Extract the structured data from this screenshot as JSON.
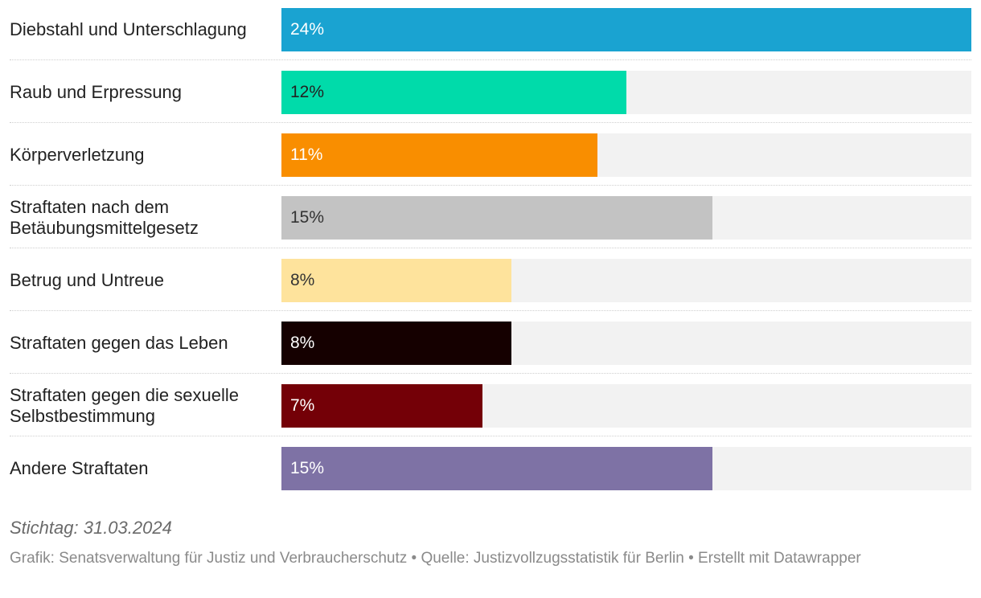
{
  "chart_data": {
    "type": "bar",
    "orientation": "horizontal",
    "categories": [
      "Diebstahl und Unterschlagung",
      "Raub und Erpressung",
      "Körperverletzung",
      "Straftaten nach dem Betäubungsmittelgesetz",
      "Betrug und Untreue",
      "Straftaten gegen das Leben",
      "Straftaten gegen die sexuelle Selbstbestimmung",
      "Andere Straftaten"
    ],
    "values": [
      24,
      12,
      11,
      15,
      8,
      8,
      7,
      15
    ],
    "value_labels": [
      "24%",
      "12%",
      "11%",
      "15%",
      "8%",
      "8%",
      "7%",
      "15%"
    ],
    "unit": "%",
    "xlim": [
      0,
      24
    ],
    "colors": [
      "#1aa3d1",
      "#00dbaa",
      "#f98e00",
      "#c3c3c3",
      "#fee39c",
      "#150000",
      "#740007",
      "#7e72a5"
    ],
    "label_colors": [
      "#ffffff",
      "#222222",
      "#ffffff",
      "#333333",
      "#333333",
      "#ffffff",
      "#ffffff",
      "#ffffff"
    ],
    "track_color": "#f2f2f2"
  },
  "notes": "Stichtag: 31.03.2024",
  "footer": "Grafik: Senatsverwaltung für Justiz und Verbraucherschutz • Quelle: Justizvollzugsstatistik für Berlin • Erstellt mit Datawrapper"
}
